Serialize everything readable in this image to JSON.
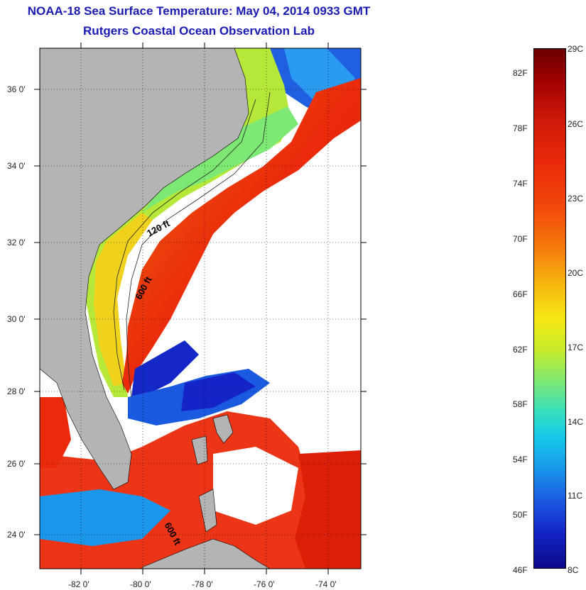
{
  "title": {
    "line1": "NOAA-18 Sea Surface Temperature:  May 04, 2014 0933 GMT",
    "line2": "Rutgers Coastal Ocean Observation Lab"
  },
  "map": {
    "lat_ticks": [
      "36 0'",
      "34 0'",
      "32 0'",
      "30 0'",
      "28 0'",
      "26 0'",
      "24 0'"
    ],
    "lon_ticks": [
      "-82 0'",
      "-80 0'",
      "-78 0'",
      "-76 0'",
      "-74 0'"
    ],
    "contours": [
      "120 ft",
      "600 ft",
      "600 ft"
    ]
  },
  "colorbar": {
    "fahrenheit": [
      "82F",
      "78F",
      "74F",
      "70F",
      "66F",
      "62F",
      "58F",
      "54F",
      "50F",
      "46F"
    ],
    "celsius": [
      "29C",
      "26C",
      "23C",
      "20C",
      "17C",
      "14C",
      "11C",
      "8C"
    ]
  },
  "colors": {
    "land": "#b4b4b4",
    "title": "#1a1ab4",
    "cloud": "#ffffff"
  }
}
